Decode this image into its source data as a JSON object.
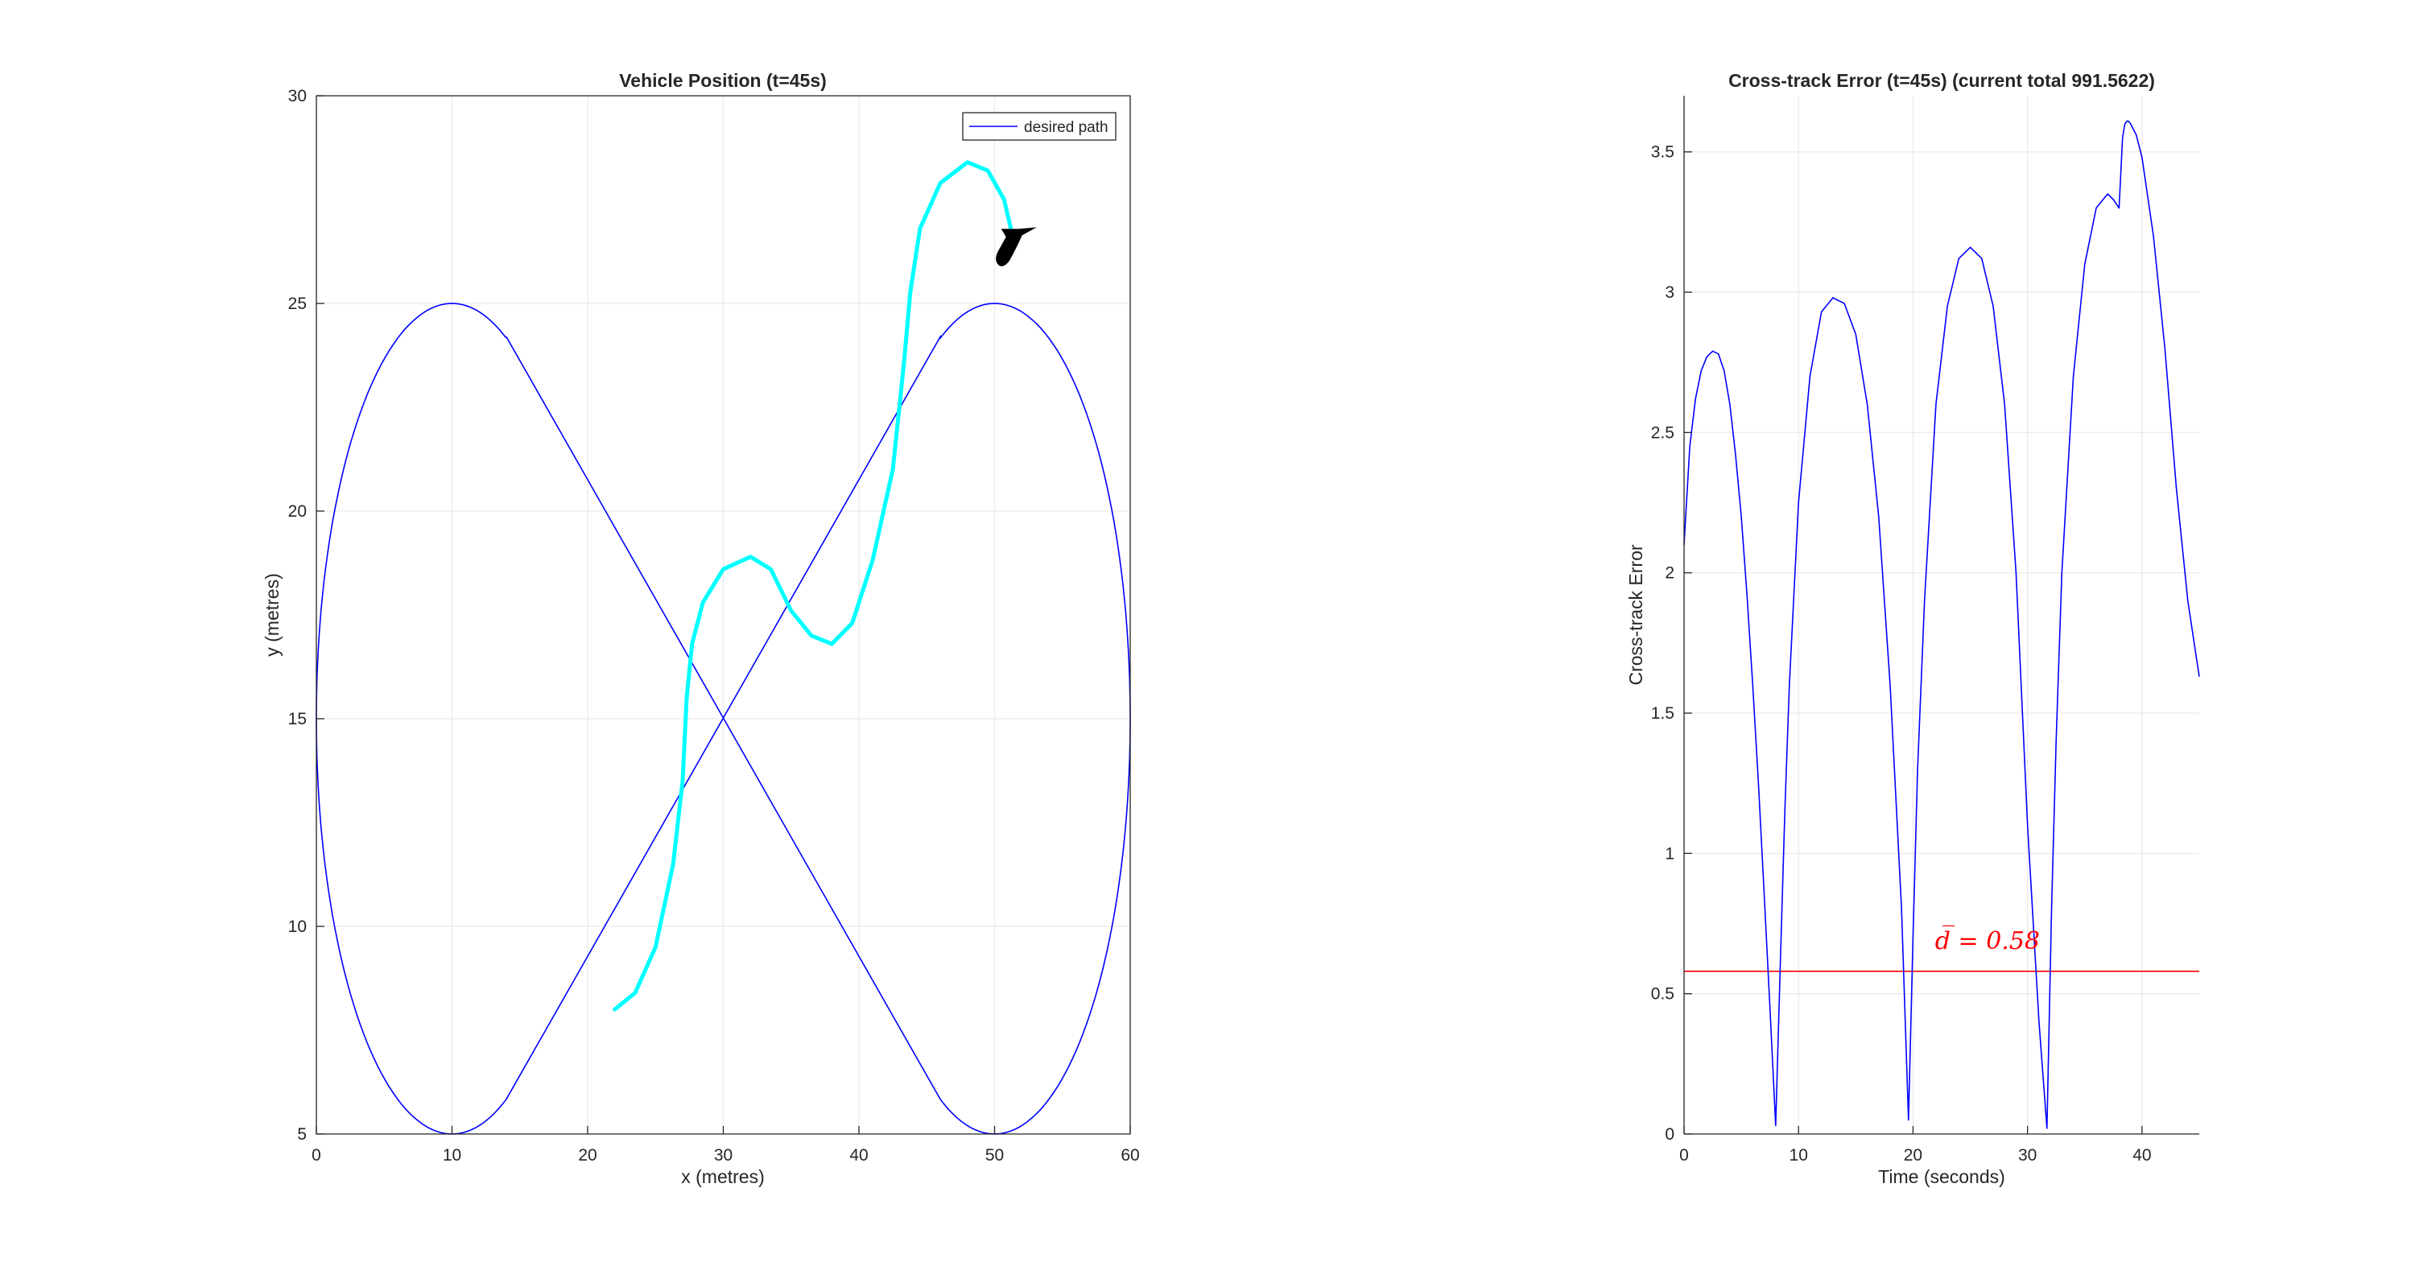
{
  "chart_data": [
    {
      "type": "line",
      "title": "Vehicle Position (t=45s)",
      "xlabel": "x (metres)",
      "ylabel": "y (metres)",
      "xlim": [
        0,
        60
      ],
      "ylim": [
        5,
        30
      ],
      "xticks": [
        0,
        10,
        20,
        30,
        40,
        50,
        60
      ],
      "yticks": [
        5,
        10,
        15,
        20,
        25,
        30
      ],
      "grid": true,
      "legend": {
        "placement": "top-right",
        "entries": [
          "desired path"
        ]
      },
      "series": [
        {
          "name": "desired path",
          "color": "#0000ff",
          "shape": "figure-eight",
          "left_lobe": {
            "center": [
              10,
              15
            ],
            "radius_x": 10,
            "radius_y": 10
          },
          "right_lobe": {
            "center": [
              50,
              15
            ],
            "radius_x": 10,
            "radius_y": 10
          },
          "crossing_segments": [
            {
              "from": [
                14,
                24.2
              ],
              "to": [
                46,
                5.8
              ]
            },
            {
              "from": [
                14,
                5.8
              ],
              "to": [
                46,
                24.2
              ]
            }
          ]
        },
        {
          "color": "#00ffff",
          "x": [
            22,
            23.5,
            25,
            26.3,
            27,
            27.3,
            27.7,
            28.5,
            30,
            32,
            33.5,
            35,
            36.5,
            38,
            39.5,
            41,
            42.5,
            43.3,
            43.8,
            44.5,
            46,
            48,
            49.5,
            50.7,
            51.2
          ],
          "y": [
            8,
            8.4,
            9.5,
            11.5,
            13.5,
            15.5,
            16.8,
            17.8,
            18.6,
            18.9,
            18.6,
            17.6,
            17.0,
            16.8,
            17.3,
            18.8,
            21.0,
            23.5,
            25.3,
            26.8,
            27.9,
            28.4,
            28.2,
            27.5,
            26.8
          ]
        }
      ],
      "vehicle": {
        "color": "#000000",
        "position": [
          51.2,
          26.6
        ],
        "heading_deg": 20
      }
    },
    {
      "type": "line",
      "title": "Cross-track Error (t=45s) (current total 991.5622)",
      "xlabel": "Time (seconds)",
      "ylabel": "Cross-track Error",
      "xlim": [
        0,
        45
      ],
      "ylim": [
        0,
        3.7
      ],
      "xticks": [
        0,
        10,
        20,
        30,
        40
      ],
      "yticks": [
        0,
        0.5,
        1,
        1.5,
        2,
        2.5,
        3,
        3.5
      ],
      "ytick_labels": [
        "0",
        "0.5",
        "1",
        "1.5",
        "2",
        "2.5",
        "3",
        "3.5"
      ],
      "grid": true,
      "series": [
        {
          "color": "#0000ff",
          "x": [
            0,
            0.5,
            1,
            1.5,
            2,
            2.5,
            3,
            3.5,
            4,
            4.5,
            5,
            5.5,
            6,
            6.5,
            7,
            7.5,
            8,
            8.4,
            8.8,
            9.2,
            10,
            11,
            12,
            13,
            14,
            15,
            16,
            17,
            18,
            19,
            19.6,
            20,
            20.4,
            21,
            22,
            23,
            24,
            25,
            26,
            27,
            28,
            29,
            30,
            31,
            31.7,
            32.1,
            32.5,
            33,
            34,
            35,
            36,
            37,
            37.5,
            38,
            38.3,
            38.5,
            38.7,
            38.8,
            39,
            39.5,
            40,
            41,
            42,
            43,
            44,
            45
          ],
          "y": [
            2.1,
            2.45,
            2.62,
            2.72,
            2.77,
            2.79,
            2.78,
            2.72,
            2.6,
            2.42,
            2.2,
            1.92,
            1.6,
            1.25,
            0.85,
            0.45,
            0.03,
            0.6,
            1.15,
            1.6,
            2.25,
            2.7,
            2.93,
            2.98,
            2.96,
            2.85,
            2.6,
            2.2,
            1.6,
            0.8,
            0.05,
            0.7,
            1.3,
            1.9,
            2.6,
            2.95,
            3.12,
            3.16,
            3.12,
            2.95,
            2.6,
            2.0,
            1.1,
            0.4,
            0.02,
            0.8,
            1.4,
            2.0,
            2.7,
            3.1,
            3.3,
            3.35,
            3.33,
            3.3,
            3.55,
            3.6,
            3.61,
            3.61,
            3.6,
            3.56,
            3.48,
            3.2,
            2.8,
            2.3,
            1.9,
            1.63
          ]
        },
        {
          "color": "#ff0000",
          "x": [
            0,
            45
          ],
          "y": [
            0.58,
            0.58
          ]
        }
      ],
      "annotations": [
        {
          "text": "d̅ = 0.58",
          "x": 26.5,
          "y": 0.66,
          "color": "#ff0000"
        }
      ]
    }
  ]
}
